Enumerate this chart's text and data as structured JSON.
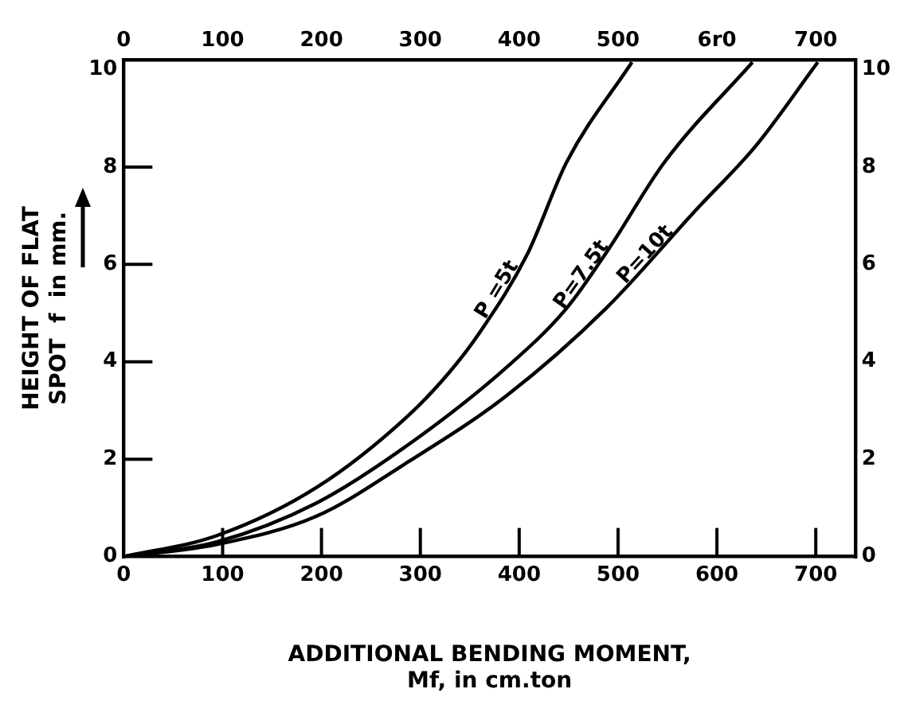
{
  "chart_data": {
    "type": "line",
    "xlabel": "ADDITIONAL BENDING MOMENT,\nMf, in cm.ton",
    "ylabel": "HEIGHT OF FLAT\nSPOT  f  in mm.",
    "marker": "none",
    "line_style": "solid",
    "grid": false,
    "legend": false,
    "xlim": [
      0,
      740
    ],
    "xticks": [
      0,
      100,
      200,
      300,
      400,
      500,
      600,
      700
    ],
    "x2lim": [
      0,
      740
    ],
    "x2ticks": [
      0,
      100,
      200,
      300,
      400,
      500,
      {
        "value": 600,
        "label": "6r0"
      },
      700
    ],
    "ylim": [
      0,
      10.2
    ],
    "yticks": [
      0,
      2,
      4,
      6,
      8,
      10
    ],
    "y2lim": [
      0,
      10.2
    ],
    "y2ticks": [
      0,
      2,
      4,
      6,
      8,
      10
    ],
    "series": [
      {
        "name": "P =5t",
        "color": "#000000",
        "x": [
          0,
          94,
          195,
          288,
          330,
          360,
          408,
          448,
          514
        ],
        "values": [
          0,
          0.43,
          1.42,
          2.9,
          3.8,
          4.6,
          6.2,
          8.1,
          10.15
        ]
      },
      {
        "name": "P=7.5t",
        "color": "#000000",
        "x": [
          0,
          94,
          195,
          288,
          388,
          448,
          490,
          547,
          636
        ],
        "values": [
          0,
          0.3,
          1.1,
          2.3,
          3.9,
          5.1,
          6.3,
          8.1,
          10.15
        ]
      },
      {
        "name": "P=10t",
        "color": "#000000",
        "x": [
          0,
          94,
          195,
          288,
          387,
          488,
          578,
          640,
          702
        ],
        "values": [
          0,
          0.25,
          0.83,
          1.95,
          3.3,
          5.1,
          7.1,
          8.45,
          10.15
        ]
      }
    ]
  }
}
